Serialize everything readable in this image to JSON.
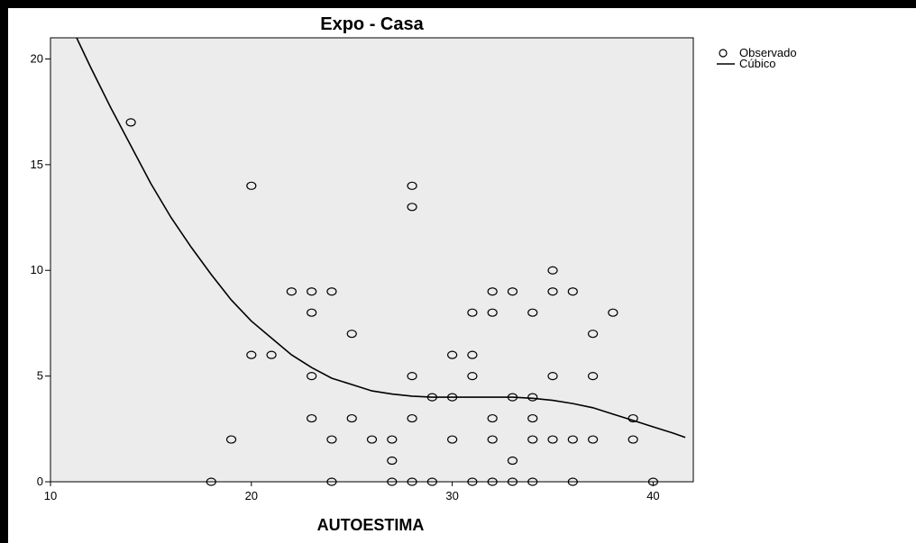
{
  "colors": {
    "frame_border": "#000000",
    "page_background": "#ffffff",
    "plot_background": "#ececec",
    "marker_stroke": "#000000",
    "curve": "#000000"
  },
  "chart_data": {
    "type": "scatter",
    "title": "Expo - Casa",
    "xlabel": "AUTOESTIMA",
    "ylabel": "",
    "xlim": [
      10,
      42
    ],
    "ylim": [
      0,
      21
    ],
    "xticks": [
      10,
      20,
      30,
      40
    ],
    "yticks": [
      0,
      5,
      10,
      15,
      20
    ],
    "grid": false,
    "legend_position": "top-right, outside plot",
    "legend": [
      {
        "label": "Observado",
        "marker": "circle-open"
      },
      {
        "label": "Cúbico",
        "marker": "line"
      }
    ],
    "series": [
      {
        "name": "Observado",
        "kind": "scatter",
        "points": [
          [
            14,
            17
          ],
          [
            18,
            0
          ],
          [
            19,
            2
          ],
          [
            20,
            14
          ],
          [
            20,
            6
          ],
          [
            21,
            6
          ],
          [
            22,
            9
          ],
          [
            23,
            9
          ],
          [
            23,
            8
          ],
          [
            23,
            5
          ],
          [
            23,
            3
          ],
          [
            24,
            9
          ],
          [
            24,
            2
          ],
          [
            24,
            0
          ],
          [
            25,
            7
          ],
          [
            25,
            3
          ],
          [
            26,
            2
          ],
          [
            27,
            2
          ],
          [
            27,
            1
          ],
          [
            27,
            0
          ],
          [
            28,
            14
          ],
          [
            28,
            13
          ],
          [
            28,
            5
          ],
          [
            28,
            3
          ],
          [
            28,
            0
          ],
          [
            29,
            4
          ],
          [
            29,
            0
          ],
          [
            30,
            6
          ],
          [
            30,
            4
          ],
          [
            30,
            2
          ],
          [
            31,
            8
          ],
          [
            31,
            6
          ],
          [
            31,
            5
          ],
          [
            31,
            0
          ],
          [
            32,
            9
          ],
          [
            32,
            8
          ],
          [
            32,
            3
          ],
          [
            32,
            2
          ],
          [
            32,
            0
          ],
          [
            33,
            9
          ],
          [
            33,
            4
          ],
          [
            33,
            1
          ],
          [
            33,
            0
          ],
          [
            34,
            8
          ],
          [
            34,
            4
          ],
          [
            34,
            3
          ],
          [
            34,
            2
          ],
          [
            34,
            0
          ],
          [
            35,
            10
          ],
          [
            35,
            9
          ],
          [
            35,
            5
          ],
          [
            35,
            2
          ],
          [
            36,
            9
          ],
          [
            36,
            2
          ],
          [
            36,
            0
          ],
          [
            37,
            7
          ],
          [
            37,
            5
          ],
          [
            37,
            2
          ],
          [
            38,
            8
          ],
          [
            39,
            3
          ],
          [
            39,
            2
          ],
          [
            40,
            0
          ]
        ]
      },
      {
        "name": "Cúbico",
        "kind": "line",
        "points": [
          [
            11.3,
            21
          ],
          [
            12,
            19.6
          ],
          [
            13,
            17.7
          ],
          [
            14,
            15.9
          ],
          [
            15,
            14.1
          ],
          [
            16,
            12.5
          ],
          [
            17,
            11.1
          ],
          [
            18,
            9.8
          ],
          [
            19,
            8.6
          ],
          [
            20,
            7.6
          ],
          [
            21,
            6.8
          ],
          [
            22,
            6.0
          ],
          [
            23,
            5.4
          ],
          [
            24,
            4.9
          ],
          [
            25,
            4.6
          ],
          [
            26,
            4.3
          ],
          [
            27,
            4.15
          ],
          [
            28,
            4.05
          ],
          [
            29,
            4.0
          ],
          [
            30,
            4.0
          ],
          [
            31,
            4.0
          ],
          [
            32,
            4.0
          ],
          [
            33,
            4.0
          ],
          [
            34,
            3.95
          ],
          [
            35,
            3.85
          ],
          [
            36,
            3.7
          ],
          [
            37,
            3.5
          ],
          [
            38,
            3.2
          ],
          [
            39,
            2.9
          ],
          [
            40,
            2.6
          ],
          [
            41,
            2.3
          ],
          [
            41.6,
            2.1
          ]
        ]
      }
    ]
  }
}
